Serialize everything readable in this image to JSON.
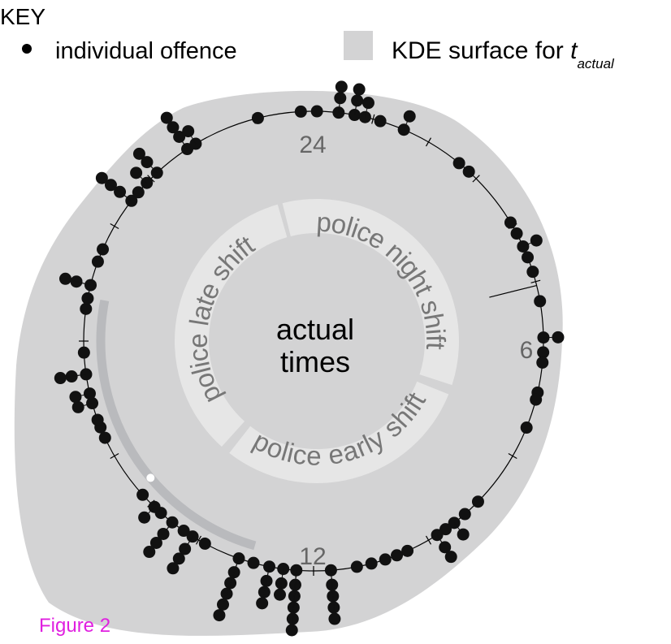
{
  "key": {
    "title": "KEY",
    "items": [
      {
        "label": "individual offence"
      },
      {
        "label": "KDE surface for",
        "variable": "t",
        "subscript": "actual"
      }
    ]
  },
  "clock": {
    "labels": [
      "24",
      "6",
      "12"
    ]
  },
  "shifts": [
    "police night shift",
    "police early shift",
    "police late shift"
  ],
  "center_label": [
    "actual",
    "times"
  ],
  "caption": "Figure 2"
}
